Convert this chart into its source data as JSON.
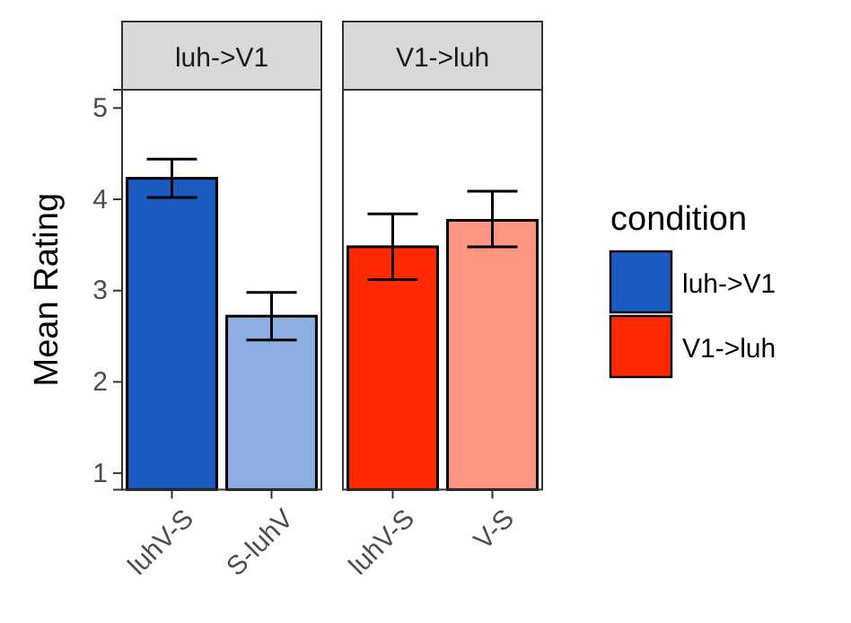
{
  "chart_data": [
    {
      "type": "bar",
      "title": "luh->V1",
      "ylabel": "Mean Rating",
      "categories": [
        "luhV-S",
        "S-luhV"
      ],
      "ylim": [
        0.82,
        5.2
      ],
      "yticks": [
        1,
        2,
        3,
        4,
        5
      ],
      "grid": false,
      "legend": "right",
      "series": [
        {
          "name": "luh->V1",
          "color": "#1a5bbf",
          "colors": [
            "#1a5bbf",
            "#8caee0"
          ],
          "values": [
            4.23,
            2.72
          ],
          "errors": [
            [
              4.02,
              4.44
            ],
            [
              2.46,
              2.98
            ]
          ]
        }
      ]
    },
    {
      "type": "bar",
      "title": "V1->luh",
      "legend_title": "condition",
      "categories": [
        "luhV-S",
        "V-S"
      ],
      "ylim": [
        0.82,
        5.2
      ],
      "yticks": [
        1,
        2,
        3,
        4,
        5
      ],
      "grid": false,
      "legend": "right",
      "tick_labels": "x",
      "series": [
        {
          "name": "V1->luh",
          "color": "#ff2a00",
          "colors": [
            "#ff2a00",
            "#ff9580"
          ],
          "values": [
            3.48,
            3.77
          ],
          "errors": [
            [
              3.12,
              3.84
            ],
            [
              3.48,
              4.09
            ]
          ]
        }
      ]
    }
  ]
}
